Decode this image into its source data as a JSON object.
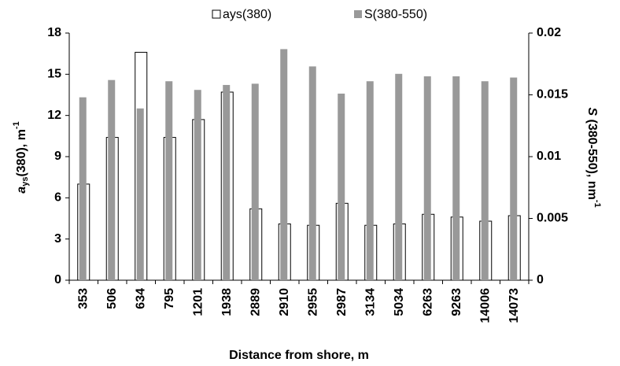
{
  "chart_data": {
    "type": "bar",
    "x_label": "Distance from shore, m",
    "y_label": [
      "a",
      "ys",
      "(380), m",
      "-1"
    ],
    "y2_label": [
      "S",
      " (380-550), nm",
      "-1"
    ],
    "categories": [
      "353",
      "506",
      "634",
      "795",
      "1201",
      "1938",
      "2889",
      "2910",
      "2955",
      "2987",
      "3134",
      "5034",
      "6263",
      "9263",
      "14006",
      "14073"
    ],
    "series": [
      {
        "name": "ays(380)",
        "color": "#ffffff",
        "values": [
          7.0,
          10.4,
          16.6,
          10.4,
          11.7,
          13.7,
          5.2,
          4.1,
          4.0,
          5.6,
          4.0,
          4.1,
          4.8,
          4.6,
          4.3,
          4.7
        ]
      },
      {
        "name": "S(380-550)",
        "color": "#999999",
        "axis": "y2",
        "values": [
          0.0148,
          0.0162,
          0.0139,
          0.0161,
          0.0154,
          0.0158,
          0.0159,
          0.0187,
          0.0173,
          0.0151,
          0.0161,
          0.0167,
          0.0165,
          0.0165,
          0.0161,
          0.0164
        ]
      }
    ],
    "ylim": [
      0,
      18
    ],
    "yticks": [
      0,
      3,
      6,
      9,
      12,
      15,
      18
    ],
    "y2lim": [
      0,
      0.02
    ],
    "y2ticks": [
      0,
      0.005,
      0.01,
      0.015,
      0.02
    ],
    "legend": "top"
  }
}
